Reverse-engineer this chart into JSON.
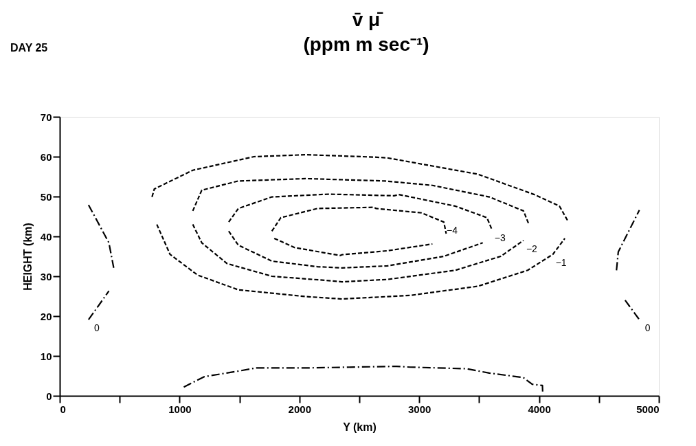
{
  "chart_data": {
    "type": "line",
    "title": "v̄ μ̄",
    "subtitle": "(ppm m sec⁻¹)",
    "xlabel": "Y (km)",
    "ylabel": "HEIGHT (km)",
    "xlim": [
      0,
      5000
    ],
    "ylim": [
      0,
      70
    ],
    "xticks": [
      0,
      {
        "value": 500,
        "label": null
      },
      1000,
      {
        "value": 1500,
        "label": null
      },
      2000,
      {
        "value": 2500,
        "label": null
      },
      3000,
      {
        "value": 3500,
        "label": null
      },
      4000,
      {
        "value": 4500,
        "label": null
      },
      5000
    ],
    "yticks": [
      0,
      10,
      20,
      30,
      40,
      50,
      60,
      70
    ],
    "grid": false,
    "legend": false,
    "marker": "none",
    "series": [
      {
        "color": "#000000",
        "line_style": "dashed",
        "x": [
          770,
          789,
          1110,
          1620,
          2055,
          2620,
          2735,
          3490,
          3960,
          4170,
          4245
        ],
        "values": [
          49.9,
          51.9,
          56.6,
          60.0,
          60.5,
          59.9,
          59.7,
          55.6,
          50.5,
          47.6,
          43.6
        ]
      },
      {
        "color": "#000000",
        "line_style": "dashed",
        "x": [
          810,
          920,
          1150,
          1490,
          2055,
          2355,
          2925,
          3490,
          3905,
          4115,
          4215
        ],
        "values": [
          43.0,
          35.5,
          30.3,
          26.6,
          24.9,
          24.3,
          25.2,
          27.5,
          31.5,
          35.5,
          39.5
        ]
      },
      {
        "color": "#000000",
        "line_style": "dashed",
        "x": [
          1110,
          1185,
          1490,
          2055,
          2715,
          3110,
          3585,
          3870,
          3915
        ],
        "values": [
          46.4,
          51.6,
          53.9,
          54.5,
          53.9,
          52.8,
          49.9,
          46.4,
          43.0
        ]
      },
      {
        "color": "#000000",
        "line_style": "dashed",
        "x": [
          1110,
          1185,
          1395,
          1770,
          2245,
          2355,
          2735,
          3300,
          3680,
          3870
        ],
        "values": [
          43.0,
          38.4,
          33.2,
          30.0,
          28.9,
          28.6,
          29.2,
          31.5,
          35.0,
          39.0
        ]
      },
      {
        "color": "#000000",
        "line_style": "dashed",
        "x": [
          1410,
          1490,
          1770,
          2245,
          2790,
          2830,
          3300,
          3565,
          3605
        ],
        "values": [
          43.6,
          47.0,
          49.9,
          50.6,
          50.2,
          50.5,
          47.6,
          44.7,
          41.8
        ]
      },
      {
        "color": "#000000",
        "line_style": "dashed",
        "x": [
          1410,
          1490,
          1770,
          2150,
          2355,
          2735,
          3205,
          3530
        ],
        "values": [
          41.3,
          37.8,
          33.8,
          32.4,
          32.1,
          32.6,
          35.0,
          38.4
        ]
      },
      {
        "color": "#000000",
        "line_style": "dashed",
        "x": [
          1770,
          1845,
          2150,
          2620,
          2640,
          3020,
          3205,
          3225
        ],
        "values": [
          41.3,
          44.7,
          47.0,
          47.3,
          47.0,
          45.9,
          43.6,
          40.7
        ]
      },
      {
        "color": "#000000",
        "line_style": "dashed",
        "x": [
          1790,
          1960,
          2340,
          2355,
          2735,
          3110
        ],
        "values": [
          39.5,
          37.2,
          35.2,
          35.4,
          36.4,
          38.1
        ]
      },
      {
        "color": "#000000",
        "line_style": "dashdot",
        "x": [
          240,
          410,
          450
        ],
        "values": [
          47.9,
          38.4,
          32.1
        ]
      },
      {
        "color": "#000000",
        "line_style": "dashdot",
        "x": [
          240,
          410
        ],
        "values": [
          19.1,
          26.3
        ]
      },
      {
        "color": "#000000",
        "line_style": "dashdot",
        "x": [
          4646,
          4661,
          4837
        ],
        "values": [
          31.5,
          36.1,
          46.6
        ]
      },
      {
        "color": "#000000",
        "line_style": "dashdot",
        "x": [
          4718,
          4837
        ],
        "values": [
          24.0,
          19.1
        ]
      },
      {
        "color": "#000000",
        "line_style": "dashdot",
        "x": [
          1035,
          1205,
          1488,
          1639,
          2055,
          2810,
          2924,
          3395,
          3585,
          3868,
          3943,
          4028,
          4030
        ],
        "values": [
          2.2,
          4.8,
          6.2,
          7.0,
          7.0,
          7.4,
          7.2,
          6.8,
          5.7,
          4.6,
          2.9,
          2.6,
          1.0
        ]
      }
    ],
    "annotations": [
      "DAY 25",
      {
        "text": "−4",
        "x": 3205,
        "y": 43.6
      },
      {
        "text": "−3",
        "x": 3605,
        "y": 41.8
      },
      {
        "text": "−2",
        "x": 3870,
        "y": 39.0
      },
      {
        "text": "−1",
        "x": 4115,
        "y": 35.5
      },
      {
        "text": "0",
        "x": 240,
        "y": 19.1
      },
      {
        "text": "0",
        "x": 4837,
        "y": 19.1
      }
    ]
  }
}
